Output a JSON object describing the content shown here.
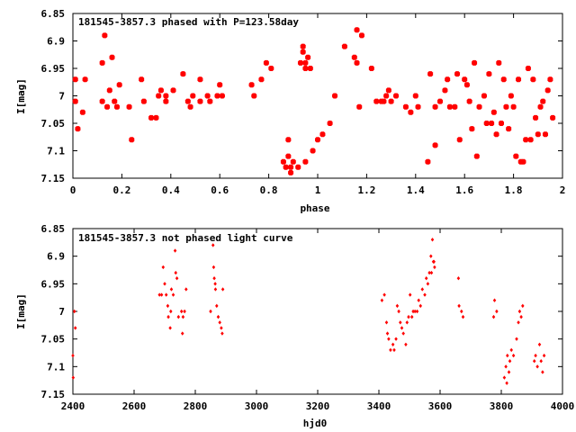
{
  "chart_data": [
    {
      "type": "scatter",
      "title": "181545-3857.3 phased with P=123.58day",
      "xlabel": "phase",
      "ylabel": "I[mag]",
      "xlim": [
        0,
        2
      ],
      "ylim": [
        7.15,
        6.85
      ],
      "y_inverted": true,
      "xticks": [
        0,
        0.2,
        0.4,
        0.6,
        0.8,
        1,
        1.2,
        1.4,
        1.6,
        1.8,
        2
      ],
      "xtick_labels": [
        "0",
        "0.2",
        "0.4",
        "0.6",
        "0.8",
        "1",
        "1.2",
        "1.4",
        "1.6",
        "1.8",
        "2"
      ],
      "yticks": [
        6.85,
        6.9,
        6.95,
        7,
        7.05,
        7.1,
        7.15
      ],
      "ytick_labels": [
        "6.85",
        "6.9",
        "6.95",
        "7",
        "7.05",
        "7.1",
        "7.15"
      ],
      "grid": false,
      "marker": "filled-square",
      "marker_color": "#ff0000",
      "series": [
        {
          "points": [
            [
              0.01,
              6.97
            ],
            [
              0.01,
              7.01
            ],
            [
              0.02,
              7.06
            ],
            [
              0.04,
              7.03
            ],
            [
              0.05,
              6.97
            ],
            [
              0.12,
              6.94
            ],
            [
              0.12,
              7.01
            ],
            [
              0.13,
              6.89
            ],
            [
              0.14,
              7.02
            ],
            [
              0.15,
              6.99
            ],
            [
              0.16,
              6.93
            ],
            [
              0.17,
              7.01
            ],
            [
              0.18,
              7.02
            ],
            [
              0.19,
              6.98
            ],
            [
              0.23,
              7.02
            ],
            [
              0.24,
              7.08
            ],
            [
              0.28,
              6.97
            ],
            [
              0.29,
              7.01
            ],
            [
              0.32,
              7.04
            ],
            [
              0.34,
              7.04
            ],
            [
              0.35,
              7.0
            ],
            [
              0.36,
              6.99
            ],
            [
              0.38,
              7.0
            ],
            [
              0.38,
              7.01
            ],
            [
              0.41,
              6.99
            ],
            [
              0.45,
              6.96
            ],
            [
              0.47,
              7.01
            ],
            [
              0.48,
              7.02
            ],
            [
              0.49,
              7.0
            ],
            [
              0.52,
              7.01
            ],
            [
              0.52,
              6.97
            ],
            [
              0.55,
              7.0
            ],
            [
              0.56,
              7.01
            ],
            [
              0.59,
              7.0
            ],
            [
              0.6,
              6.98
            ],
            [
              0.61,
              7.0
            ],
            [
              0.73,
              6.98
            ],
            [
              0.74,
              7.0
            ],
            [
              0.77,
              6.97
            ],
            [
              0.79,
              6.94
            ],
            [
              0.81,
              6.95
            ],
            [
              0.86,
              7.12
            ],
            [
              0.87,
              7.13
            ],
            [
              0.88,
              7.08
            ],
            [
              0.88,
              7.11
            ],
            [
              0.89,
              7.13
            ],
            [
              0.89,
              7.14
            ],
            [
              0.9,
              7.12
            ],
            [
              0.92,
              7.13
            ],
            [
              0.93,
              6.94
            ],
            [
              0.94,
              6.91
            ],
            [
              0.94,
              6.92
            ],
            [
              0.95,
              6.95
            ],
            [
              0.95,
              6.94
            ],
            [
              0.95,
              7.12
            ],
            [
              0.96,
              6.93
            ],
            [
              0.97,
              6.95
            ],
            [
              0.98,
              7.1
            ],
            [
              1.0,
              7.08
            ],
            [
              1.02,
              7.07
            ],
            [
              1.05,
              7.05
            ],
            [
              1.07,
              7.0
            ],
            [
              1.11,
              6.91
            ],
            [
              1.15,
              6.93
            ],
            [
              1.16,
              6.94
            ],
            [
              1.16,
              6.88
            ],
            [
              1.17,
              7.02
            ],
            [
              1.18,
              6.89
            ],
            [
              1.22,
              6.95
            ],
            [
              1.24,
              7.01
            ],
            [
              1.26,
              7.01
            ],
            [
              1.27,
              7.01
            ],
            [
              1.28,
              7.0
            ],
            [
              1.29,
              6.99
            ],
            [
              1.3,
              7.01
            ],
            [
              1.32,
              7.0
            ],
            [
              1.36,
              7.02
            ],
            [
              1.38,
              7.03
            ],
            [
              1.4,
              7.0
            ],
            [
              1.41,
              7.02
            ],
            [
              1.45,
              7.12
            ],
            [
              1.46,
              6.96
            ],
            [
              1.48,
              7.09
            ],
            [
              1.48,
              7.02
            ],
            [
              1.5,
              7.01
            ],
            [
              1.52,
              6.99
            ],
            [
              1.53,
              6.97
            ],
            [
              1.54,
              7.02
            ],
            [
              1.56,
              7.02
            ],
            [
              1.57,
              6.96
            ],
            [
              1.58,
              7.08
            ],
            [
              1.6,
              6.97
            ],
            [
              1.61,
              6.98
            ],
            [
              1.62,
              7.01
            ],
            [
              1.63,
              7.06
            ],
            [
              1.64,
              6.94
            ],
            [
              1.65,
              7.11
            ],
            [
              1.66,
              7.02
            ],
            [
              1.68,
              7.0
            ],
            [
              1.69,
              7.05
            ],
            [
              1.7,
              6.96
            ],
            [
              1.71,
              7.05
            ],
            [
              1.72,
              7.03
            ],
            [
              1.73,
              7.07
            ],
            [
              1.74,
              6.94
            ],
            [
              1.75,
              7.05
            ],
            [
              1.76,
              6.97
            ],
            [
              1.77,
              7.02
            ],
            [
              1.78,
              7.06
            ],
            [
              1.79,
              7.0
            ],
            [
              1.8,
              7.02
            ],
            [
              1.81,
              7.11
            ],
            [
              1.82,
              6.97
            ],
            [
              1.83,
              7.12
            ],
            [
              1.84,
              7.12
            ],
            [
              1.85,
              7.08
            ],
            [
              1.86,
              6.95
            ],
            [
              1.87,
              7.08
            ],
            [
              1.88,
              6.97
            ],
            [
              1.89,
              7.04
            ],
            [
              1.9,
              7.07
            ],
            [
              1.91,
              7.02
            ],
            [
              1.92,
              7.01
            ],
            [
              1.93,
              7.07
            ],
            [
              1.94,
              6.99
            ],
            [
              1.95,
              6.97
            ],
            [
              1.96,
              7.04
            ]
          ]
        }
      ]
    },
    {
      "type": "scatter",
      "title": "181545-3857.3 not phased light curve",
      "xlabel": "hjd0",
      "ylabel": "I[mag]",
      "xlim": [
        2400,
        4000
      ],
      "ylim": [
        7.15,
        6.85
      ],
      "y_inverted": true,
      "xticks": [
        2400,
        2600,
        2800,
        3000,
        3200,
        3400,
        3600,
        3800,
        4000
      ],
      "xtick_labels": [
        "2400",
        "2600",
        "2800",
        "3000",
        "3200",
        "3400",
        "3600",
        "3800",
        "4000"
      ],
      "yticks": [
        6.85,
        6.9,
        6.95,
        7,
        7.05,
        7.1,
        7.15
      ],
      "ytick_labels": [
        "6.85",
        "6.9",
        "6.95",
        "7",
        "7.05",
        "7.1",
        "7.15"
      ],
      "grid": false,
      "marker": "small-diamond",
      "marker_color": "#ff0000",
      "series": [
        {
          "points": [
            [
              2400,
              7.08
            ],
            [
              2401,
              7.12
            ],
            [
              2405,
              7.0
            ],
            [
              2408,
              7.03
            ],
            [
              2683,
              6.97
            ],
            [
              2690,
              6.97
            ],
            [
              2695,
              6.92
            ],
            [
              2700,
              6.95
            ],
            [
              2705,
              6.97
            ],
            [
              2710,
              6.99
            ],
            [
              2712,
              7.01
            ],
            [
              2718,
              7.03
            ],
            [
              2720,
              7.0
            ],
            [
              2722,
              6.96
            ],
            [
              2728,
              6.97
            ],
            [
              2734,
              6.89
            ],
            [
              2736,
              6.93
            ],
            [
              2740,
              6.94
            ],
            [
              2745,
              7.01
            ],
            [
              2755,
              7.0
            ],
            [
              2758,
              7.04
            ],
            [
              2760,
              7.01
            ],
            [
              2765,
              7.0
            ],
            [
              2770,
              6.96
            ],
            [
              2850,
              7.0
            ],
            [
              2858,
              6.88
            ],
            [
              2860,
              6.92
            ],
            [
              2862,
              6.94
            ],
            [
              2865,
              6.95
            ],
            [
              2866,
              6.96
            ],
            [
              2870,
              6.99
            ],
            [
              2875,
              7.01
            ],
            [
              2880,
              7.02
            ],
            [
              2885,
              7.03
            ],
            [
              2888,
              7.04
            ],
            [
              2890,
              6.96
            ],
            [
              3410,
              6.98
            ],
            [
              3418,
              6.97
            ],
            [
              3425,
              7.02
            ],
            [
              3428,
              7.04
            ],
            [
              3432,
              7.05
            ],
            [
              3438,
              7.07
            ],
            [
              3446,
              7.06
            ],
            [
              3450,
              7.07
            ],
            [
              3456,
              7.05
            ],
            [
              3460,
              6.99
            ],
            [
              3465,
              7.0
            ],
            [
              3470,
              7.02
            ],
            [
              3475,
              7.03
            ],
            [
              3480,
              7.04
            ],
            [
              3488,
              7.06
            ],
            [
              3492,
              7.02
            ],
            [
              3497,
              7.01
            ],
            [
              3502,
              6.97
            ],
            [
              3508,
              7.01
            ],
            [
              3512,
              7.0
            ],
            [
              3518,
              7.0
            ],
            [
              3525,
              7.0
            ],
            [
              3530,
              6.98
            ],
            [
              3536,
              6.99
            ],
            [
              3542,
              6.96
            ],
            [
              3550,
              6.97
            ],
            [
              3555,
              6.94
            ],
            [
              3560,
              6.95
            ],
            [
              3565,
              6.93
            ],
            [
              3570,
              6.9
            ],
            [
              3572,
              6.93
            ],
            [
              3575,
              6.87
            ],
            [
              3578,
              6.91
            ],
            [
              3580,
              6.91
            ],
            [
              3582,
              6.92
            ],
            [
              3660,
              6.94
            ],
            [
              3662,
              6.99
            ],
            [
              3670,
              7.0
            ],
            [
              3675,
              7.01
            ],
            [
              3775,
              7.01
            ],
            [
              3778,
              6.98
            ],
            [
              3785,
              7.0
            ],
            [
              3810,
              7.12
            ],
            [
              3815,
              7.1
            ],
            [
              3818,
              7.13
            ],
            [
              3820,
              7.08
            ],
            [
              3825,
              7.11
            ],
            [
              3828,
              7.09
            ],
            [
              3833,
              7.07
            ],
            [
              3840,
              7.08
            ],
            [
              3850,
              7.05
            ],
            [
              3856,
              7.02
            ],
            [
              3860,
              7.0
            ],
            [
              3865,
              7.01
            ],
            [
              3870,
              6.99
            ],
            [
              3908,
              7.09
            ],
            [
              3912,
              7.08
            ],
            [
              3918,
              7.1
            ],
            [
              3925,
              7.06
            ],
            [
              3930,
              7.09
            ],
            [
              3935,
              7.11
            ],
            [
              3940,
              7.08
            ]
          ]
        }
      ]
    }
  ]
}
